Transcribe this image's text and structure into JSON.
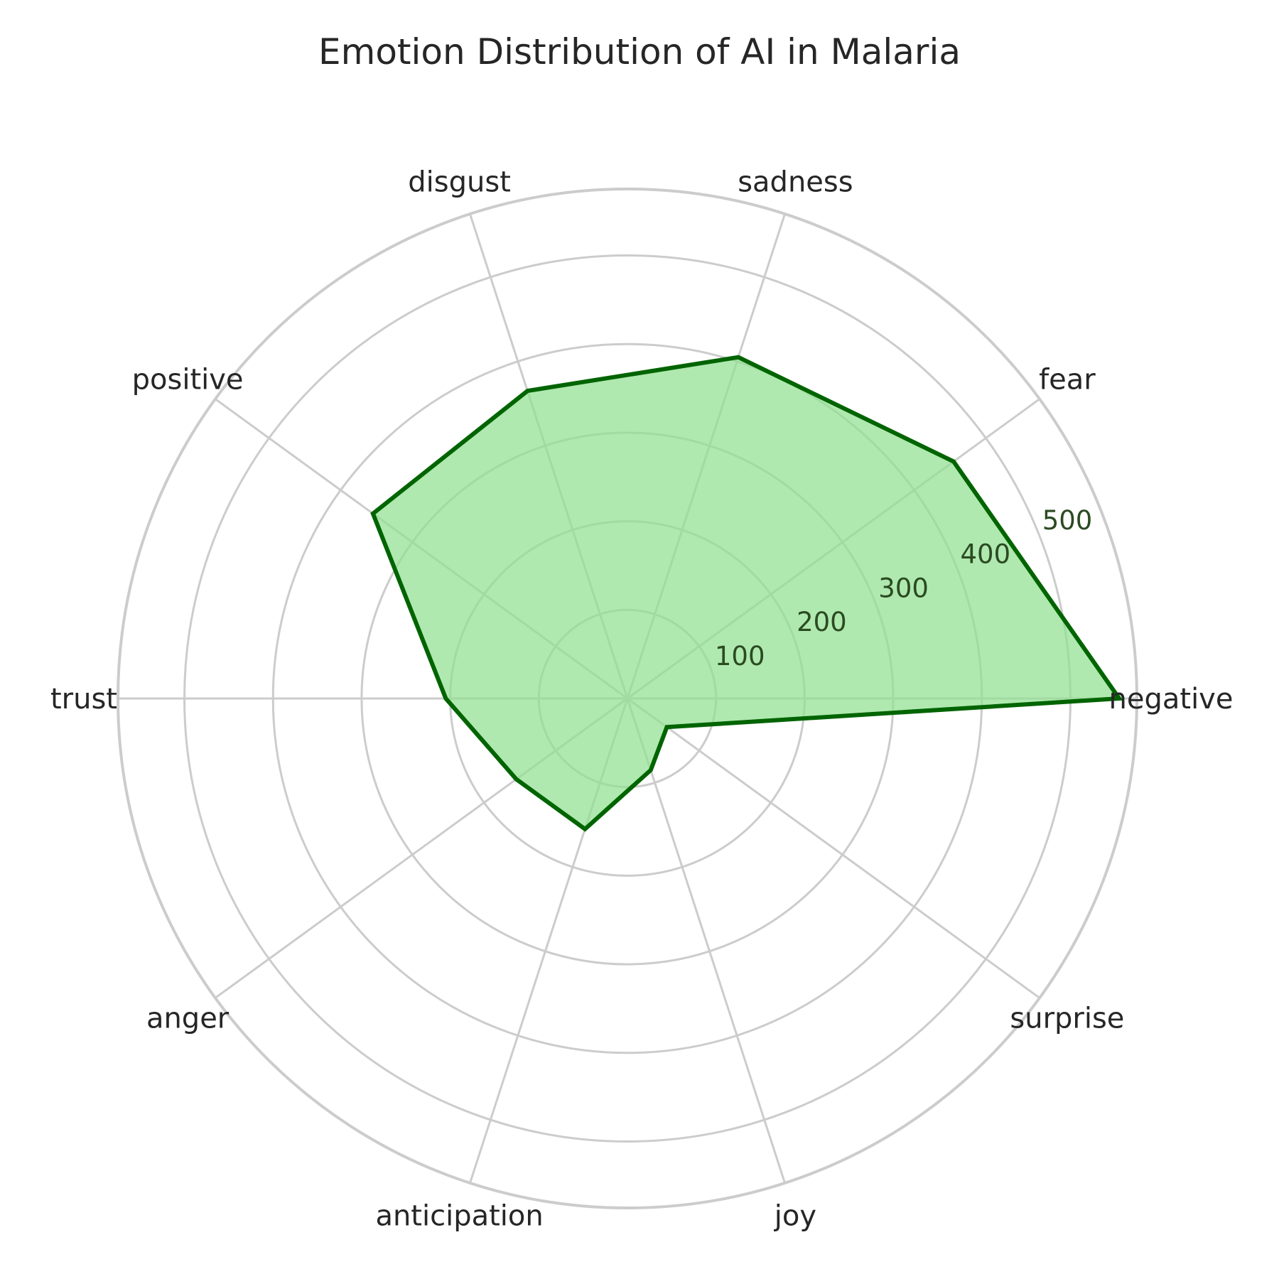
{
  "chart_data": {
    "type": "radar",
    "title": "Emotion Distribution of AI in Malaria",
    "categories": [
      "negative",
      "fear",
      "sadness",
      "disgust",
      "positive",
      "trust",
      "anger",
      "anticipation",
      "joy",
      "surprise"
    ],
    "series": [
      {
        "values": [
          555,
          455,
          405,
          365,
          355,
          205,
          155,
          155,
          85,
          55
        ]
      }
    ],
    "r_ticks": [
      100,
      200,
      300,
      400,
      500
    ],
    "rlim": [
      0,
      575
    ],
    "grid": true,
    "colors": {
      "line": "#006400",
      "fill": "#90e090",
      "grid": "#cccccc",
      "tick_text": "#2b4a22",
      "label_text": "#262626"
    }
  }
}
